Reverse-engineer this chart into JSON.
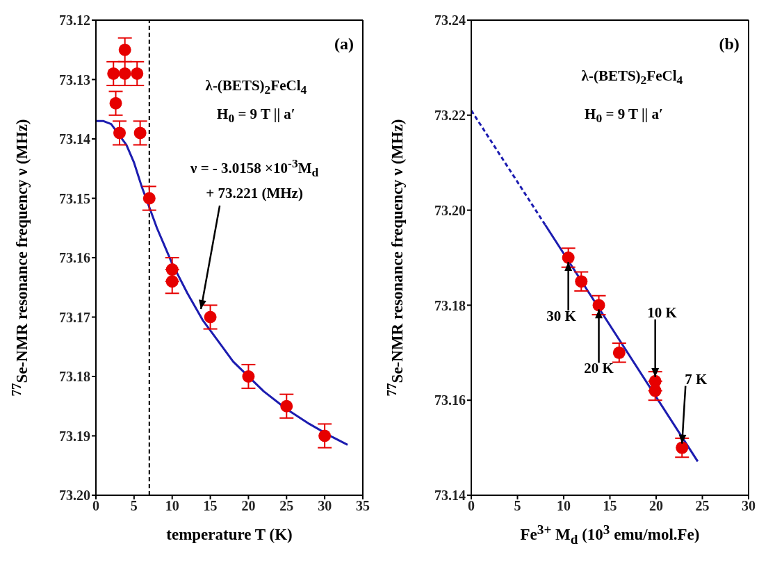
{
  "chart_data": [
    {
      "type": "scatter",
      "xlabel": "temperature T (K)",
      "ylabel": "$^{77}$Se-NMR resonance frequency ν (MHz)",
      "xlim": [
        0,
        35
      ],
      "xticks": [
        0,
        5,
        10,
        15,
        20,
        25,
        30,
        35
      ],
      "ylim": [
        73.2,
        73.12
      ],
      "yticks": [
        73.12,
        73.13,
        73.14,
        73.15,
        73.16,
        73.17,
        73.18,
        73.19,
        {
          "value": 73.2,
          "label": "73.20"
        }
      ],
      "ref_lines": [
        {
          "axis": "x",
          "value": 7,
          "color": "#000000",
          "line_style": "dashed"
        }
      ],
      "annotations": [
        "(a)",
        "λ-(BETS)$_{2}$FeCl$_{4}$",
        "H$_{0}$ = 9 T || a′",
        {
          "text": "ν = - 3.0158 ×10$^{-3}$M$_{d}$\n+ 73.221 (MHz)",
          "x": 13.5,
          "y": 73.169
        }
      ],
      "series": [
        {
          "type": "scatter",
          "marker": "circle",
          "color": "#e60000",
          "x": [
            2.3,
            3.8,
            5.4,
            3.8,
            2.6,
            3.1,
            5.8,
            7,
            10,
            10,
            15,
            20,
            25,
            30
          ],
          "values": [
            73.129,
            73.129,
            73.129,
            73.125,
            73.134,
            73.139,
            73.139,
            73.15,
            73.162,
            73.164,
            73.17,
            73.18,
            73.185,
            73.19
          ],
          "errors": [
            0.002,
            0.002,
            0.002,
            0.002,
            0.002,
            0.002,
            0.002,
            0.002,
            0.002,
            0.002,
            0.002,
            0.002,
            0.002,
            0.002
          ]
        },
        {
          "type": "line",
          "marker": "none",
          "color": "#1c1cb0",
          "line_style": "solid",
          "x": [
            0,
            1,
            2,
            4,
            5,
            6,
            7,
            8,
            9,
            10,
            12,
            14,
            16,
            18,
            22,
            25,
            28,
            31,
            33
          ],
          "values": [
            73.137,
            73.137,
            73.1375,
            73.141,
            73.144,
            73.148,
            73.1515,
            73.155,
            73.158,
            73.161,
            73.166,
            73.1705,
            73.174,
            73.1775,
            73.1825,
            73.1855,
            73.188,
            73.1902,
            73.1915
          ]
        }
      ]
    },
    {
      "type": "scatter",
      "xlabel": "Fe$^{3+}$ M$_{d}$ (10$^{3}$ emu/mol.Fe)",
      "ylabel": "$^{77}$Se-NMR resonance frequency ν (MHz)",
      "xlim": [
        0,
        30
      ],
      "xticks": [
        0,
        5,
        10,
        15,
        20,
        25,
        30
      ],
      "ylim": [
        73.14,
        73.24
      ],
      "yticks": [
        73.14,
        73.16,
        73.18,
        {
          "value": 73.2,
          "label": "73.20"
        },
        73.22,
        73.24
      ],
      "annotations": [
        "(b)",
        "λ-(BETS)$_{2}$FeCl$_{4}$",
        "H$_{0}$ = 9 T || a′",
        {
          "text": "30 K",
          "x": 10.5,
          "y": 73.19
        },
        {
          "text": "20 K",
          "x": 13.8,
          "y": 73.18
        },
        {
          "text": "10 K",
          "x": 19.9,
          "y": 73.164
        },
        {
          "text": "7 K",
          "x": 22.8,
          "y": 73.15
        }
      ],
      "series": [
        {
          "type": "scatter",
          "marker": "circle",
          "color": "#e60000",
          "x": [
            10.5,
            11.9,
            13.8,
            16.0,
            19.9,
            19.9,
            22.8
          ],
          "values": [
            73.19,
            73.185,
            73.18,
            73.17,
            73.164,
            73.162,
            73.15
          ],
          "errors": [
            0.002,
            0.002,
            0.002,
            0.002,
            0.002,
            0.002,
            0.002
          ]
        },
        {
          "type": "line",
          "marker": "none",
          "color": "#1c1cb0",
          "line_style": "dashed",
          "x": [
            0,
            8
          ],
          "values": [
            73.221,
            73.1969
          ]
        },
        {
          "type": "line",
          "marker": "none",
          "color": "#1c1cb0",
          "line_style": "solid",
          "x": [
            8,
            24.5
          ],
          "values": [
            73.1969,
            73.1471
          ]
        }
      ]
    }
  ]
}
